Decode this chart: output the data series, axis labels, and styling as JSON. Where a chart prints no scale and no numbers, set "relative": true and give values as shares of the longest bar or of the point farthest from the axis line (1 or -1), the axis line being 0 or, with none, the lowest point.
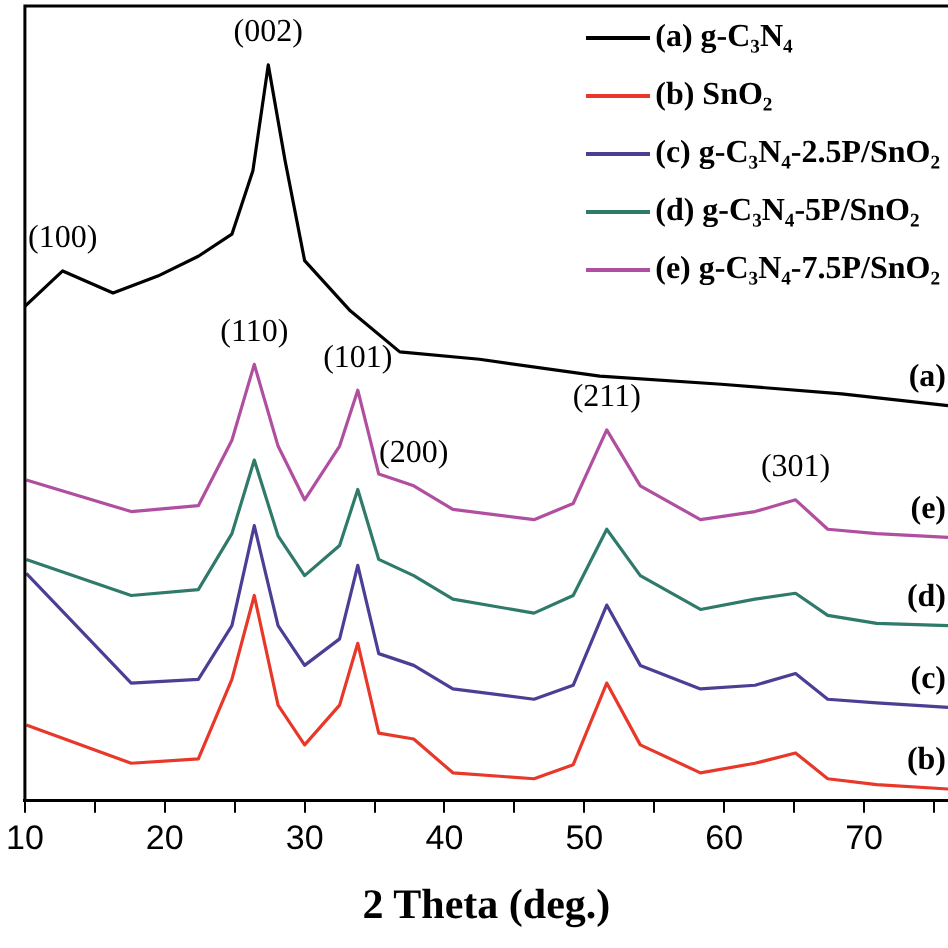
{
  "chart_data": {
    "type": "line",
    "relative": true,
    "xlabel": "2 Theta (deg.)",
    "xlim": [
      10,
      76
    ],
    "xticks": [
      10,
      {
        "value": 15,
        "label": null
      },
      20,
      {
        "value": 25,
        "label": null
      },
      30,
      {
        "value": 35,
        "label": null
      },
      40,
      {
        "value": 45,
        "label": null
      },
      50,
      {
        "value": 55,
        "label": null
      },
      60,
      {
        "value": 65,
        "label": null
      },
      70,
      {
        "value": 75,
        "label": null
      }
    ],
    "grid": false,
    "legend": "top right",
    "marker": "none",
    "line_style": "solid",
    "series": [
      {
        "name": "(a) g-C₃N₄",
        "color": "#000000",
        "x": [
          10,
          12.7,
          16.3,
          19.5,
          22.4,
          24.8,
          26.3,
          27.4,
          28.6,
          30,
          33.2,
          36.8,
          42.5,
          51.1,
          59.8,
          68.4,
          76
        ],
        "values": [
          0.672,
          0.72,
          0.69,
          0.713,
          0.74,
          0.77,
          0.856,
          1.0,
          0.87,
          0.734,
          0.667,
          0.61,
          0.6,
          0.577,
          0.566,
          0.553,
          0.537
        ]
      },
      {
        "name": "(b) SnO₂",
        "color": "#e8382a",
        "x": [
          10.1,
          17.6,
          22.4,
          24.8,
          26.4,
          28.1,
          30,
          32.5,
          33.8,
          35.3,
          37.8,
          40.6,
          46.4,
          49.2,
          51.6,
          54,
          58.3,
          62.2,
          65.1,
          67.4,
          70.9,
          76
        ],
        "values": [
          0.103,
          0.051,
          0.057,
          0.165,
          0.279,
          0.13,
          0.076,
          0.13,
          0.214,
          0.092,
          0.084,
          0.038,
          0.03,
          0.049,
          0.16,
          0.076,
          0.038,
          0.051,
          0.065,
          0.03,
          0.022,
          0.016
        ]
      },
      {
        "name": "(c) g-C₃N₄-2.5P/SnO₂",
        "color": "#4a3f94",
        "x": [
          10.1,
          17.6,
          22.4,
          24.8,
          26.4,
          28.1,
          30,
          32.5,
          33.8,
          35.3,
          37.8,
          40.6,
          46.4,
          49.2,
          51.6,
          54,
          58.3,
          62.2,
          65.1,
          67.4,
          70.9,
          76
        ],
        "values": [
          0.309,
          0.16,
          0.165,
          0.238,
          0.374,
          0.238,
          0.184,
          0.22,
          0.32,
          0.2,
          0.184,
          0.152,
          0.138,
          0.157,
          0.266,
          0.184,
          0.152,
          0.157,
          0.173,
          0.138,
          0.133,
          0.127
        ]
      },
      {
        "name": "(d) g-C₃N₄-5P/SnO₂",
        "color": "#2f7a6a",
        "x": [
          10.1,
          17.6,
          22.4,
          24.8,
          26.4,
          28.1,
          30,
          32.5,
          33.8,
          35.3,
          37.8,
          40.6,
          46.4,
          49.2,
          51.6,
          54,
          58.3,
          62.2,
          65.1,
          67.4,
          70.9,
          76
        ],
        "values": [
          0.328,
          0.279,
          0.287,
          0.363,
          0.463,
          0.36,
          0.306,
          0.347,
          0.423,
          0.328,
          0.306,
          0.274,
          0.255,
          0.279,
          0.369,
          0.306,
          0.26,
          0.274,
          0.282,
          0.252,
          0.241,
          0.238
        ]
      },
      {
        "name": "(e) g-C₃N₄-7.5P/SnO₂",
        "color": "#b04fa0",
        "x": [
          10.1,
          17.6,
          22.4,
          24.8,
          26.4,
          28.1,
          30,
          32.5,
          33.8,
          35.3,
          37.8,
          40.6,
          46.4,
          49.2,
          51.6,
          54,
          58.3,
          62.2,
          65.1,
          67.4,
          70.9,
          76
        ],
        "values": [
          0.436,
          0.393,
          0.401,
          0.49,
          0.593,
          0.482,
          0.409,
          0.482,
          0.558,
          0.444,
          0.428,
          0.396,
          0.382,
          0.404,
          0.504,
          0.428,
          0.382,
          0.393,
          0.409,
          0.369,
          0.363,
          0.358
        ]
      }
    ],
    "annotations": [
      {
        "text": "(100)",
        "x": 12.7,
        "y": 0.72
      },
      {
        "text": "(002)",
        "x": 27.4,
        "y": 1.0
      },
      {
        "text": "(110)",
        "x": 26.4,
        "y": 0.593
      },
      {
        "text": "(101)",
        "x": 33.8,
        "y": 0.558
      },
      {
        "text": "(200)",
        "x": 37.8,
        "y": 0.428
      },
      {
        "text": "(211)",
        "x": 51.6,
        "y": 0.504
      },
      {
        "text": "(301)",
        "x": 65.1,
        "y": 0.409
      },
      {
        "text": "(a)",
        "x": 76,
        "y": 0.537
      },
      {
        "text": "(e)",
        "x": 76,
        "y": 0.358
      },
      {
        "text": "(d)",
        "x": 76,
        "y": 0.238
      },
      {
        "text": "(c)",
        "x": 76,
        "y": 0.127
      },
      {
        "text": "(b)",
        "x": 76,
        "y": 0.016
      }
    ]
  }
}
